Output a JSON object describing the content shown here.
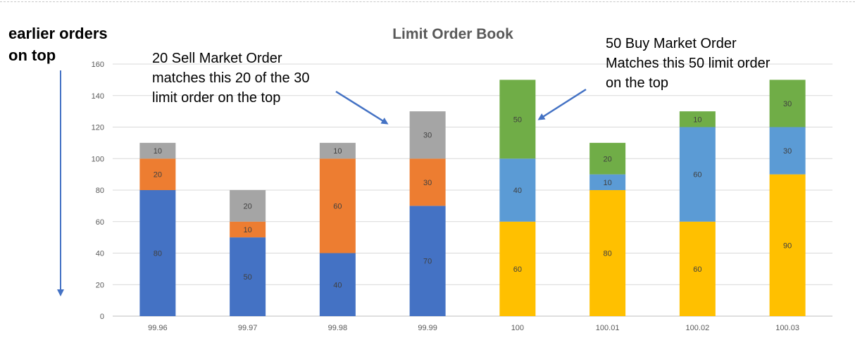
{
  "side_label": {
    "line1": "earlier orders",
    "line2": "on top"
  },
  "callouts": {
    "sell": [
      "20 Sell Market Order",
      "matches this 20 of the 30",
      "limit order on the top"
    ],
    "buy": [
      "50 Buy Market Order",
      "Matches this 50 limit order",
      "on the top"
    ]
  },
  "colors": {
    "ask_dark": "#4472C4",
    "ask_orange": "#ED7D31",
    "ask_gray": "#A5A5A5",
    "bid_yellow": "#FFC000",
    "bid_blue": "#5B9BD5",
    "bid_green": "#70AD47",
    "arrow": "#4472C4"
  },
  "chart_data": {
    "type": "bar",
    "stacked": true,
    "title": "Limit Order Book",
    "categories": [
      "99.96",
      "99.97",
      "99.98",
      "99.99",
      "100",
      "100.01",
      "100.02",
      "100.03"
    ],
    "ylim": [
      0,
      160
    ],
    "yticks": [
      0,
      20,
      40,
      60,
      80,
      100,
      120,
      140,
      160
    ],
    "grid": true,
    "legend": "none",
    "stacks": [
      [
        {
          "value": 80,
          "color": "#4472C4"
        },
        {
          "value": 20,
          "color": "#ED7D31"
        },
        {
          "value": 10,
          "color": "#A5A5A5"
        }
      ],
      [
        {
          "value": 50,
          "color": "#4472C4"
        },
        {
          "value": 10,
          "color": "#ED7D31"
        },
        {
          "value": 20,
          "color": "#A5A5A5"
        }
      ],
      [
        {
          "value": 40,
          "color": "#4472C4"
        },
        {
          "value": 60,
          "color": "#ED7D31"
        },
        {
          "value": 10,
          "color": "#A5A5A5"
        }
      ],
      [
        {
          "value": 70,
          "color": "#4472C4"
        },
        {
          "value": 30,
          "color": "#ED7D31"
        },
        {
          "value": 30,
          "color": "#A5A5A5"
        }
      ],
      [
        {
          "value": 60,
          "color": "#FFC000"
        },
        {
          "value": 40,
          "color": "#5B9BD5"
        },
        {
          "value": 50,
          "color": "#70AD47"
        }
      ],
      [
        {
          "value": 80,
          "color": "#FFC000"
        },
        {
          "value": 10,
          "color": "#5B9BD5"
        },
        {
          "value": 20,
          "color": "#70AD47"
        }
      ],
      [
        {
          "value": 60,
          "color": "#FFC000"
        },
        {
          "value": 60,
          "color": "#5B9BD5"
        },
        {
          "value": 10,
          "color": "#70AD47"
        }
      ],
      [
        {
          "value": 90,
          "color": "#FFC000"
        },
        {
          "value": 30,
          "color": "#5B9BD5"
        },
        {
          "value": 30,
          "color": "#70AD47"
        }
      ]
    ]
  }
}
